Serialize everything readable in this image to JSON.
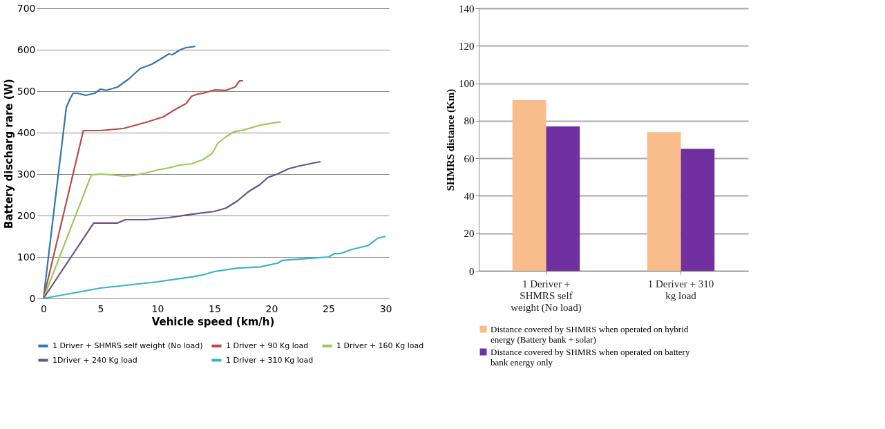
{
  "chart_data": [
    {
      "type": "line",
      "xlabel": "Vehicle speed (km/h)",
      "ylabel": "Battery discharg rare (W)",
      "xlim": [
        -0.6,
        30.3
      ],
      "xticks": [
        0,
        5,
        10,
        15,
        20,
        25,
        30
      ],
      "ylim": [
        0,
        700
      ],
      "yticks": [
        0,
        100,
        200,
        300,
        400,
        500,
        600,
        700
      ],
      "grid": "y",
      "legend": "bottom",
      "marker": "none",
      "line_style": "solid",
      "series": [
        {
          "name": "1 Driver + SHMRS self weight (No load)",
          "color": "#2f78b0",
          "x": [
            0,
            2.0,
            2.3,
            2.6,
            3.0,
            3.7,
            4.5,
            5.0,
            5.5,
            6.5,
            7.5,
            8.5,
            9.5,
            10.3,
            11.0,
            11.3,
            12.0,
            12.5,
            13.3
          ],
          "values": [
            0,
            460,
            480,
            495,
            495,
            490,
            495,
            505,
            502,
            510,
            530,
            555,
            565,
            578,
            590,
            588,
            600,
            605,
            608
          ]
        },
        {
          "name": "1 Driver + 90 Kg load",
          "color": "#b84a47",
          "x": [
            0,
            3.5,
            5.0,
            7.0,
            9.0,
            10.5,
            11.5,
            12.5,
            13.0,
            13.5,
            14.0,
            15.0,
            16.0,
            16.8,
            17.2,
            17.5
          ],
          "values": [
            0,
            405,
            405,
            410,
            425,
            438,
            455,
            470,
            488,
            493,
            495,
            503,
            502,
            510,
            525,
            525
          ]
        },
        {
          "name": "1 Driver + 160 Kg load",
          "color": "#9bcb59",
          "x": [
            0,
            4.2,
            5.0,
            6.0,
            7.0,
            8.0,
            9.0,
            10.0,
            11.0,
            12.0,
            13.0,
            14.0,
            14.8,
            15.3,
            16.0,
            16.7,
            17.5,
            19.0,
            20.8
          ],
          "values": [
            0,
            298,
            300,
            298,
            295,
            297,
            303,
            310,
            315,
            322,
            325,
            335,
            350,
            375,
            390,
            402,
            406,
            418,
            426
          ]
        },
        {
          "name": "1Driver + 240 Kg load",
          "color": "#67528a",
          "x": [
            0,
            4.4,
            6.5,
            7.2,
            9.0,
            11.0,
            13.0,
            15.0,
            16.0,
            17.0,
            18.0,
            19.0,
            19.7,
            20.5,
            21.5,
            22.5,
            24.3
          ],
          "values": [
            0,
            182,
            182,
            190,
            190,
            195,
            203,
            210,
            218,
            235,
            258,
            275,
            292,
            300,
            313,
            320,
            330
          ]
        },
        {
          "name": "1 Driver + 310 Kg load",
          "color": "#35b4cc",
          "x": [
            0,
            5.0,
            10.0,
            13.0,
            14.0,
            15.0,
            17.0,
            19.0,
            20.5,
            21.0,
            23.0,
            25.0,
            25.5,
            26.0,
            27.0,
            28.5,
            29.3,
            30.0
          ],
          "values": [
            0,
            25,
            40,
            52,
            57,
            65,
            73,
            76,
            85,
            92,
            96,
            100,
            108,
            108,
            118,
            128,
            145,
            150
          ]
        }
      ]
    },
    {
      "type": "bar",
      "ylabel": "SHMRS distance (Km)",
      "categories": [
        "1 Deriver + SHMRS self weight (No load)",
        "1 Deriver + 310 kg load"
      ],
      "ylim": [
        0,
        140
      ],
      "yticks": [
        0,
        20,
        40,
        60,
        80,
        100,
        120,
        140
      ],
      "grid": "y",
      "legend": "bottom",
      "series": [
        {
          "name": "Distance covered by SHMRS when operated on hybrid energy (Battery bank + solar)",
          "color": "#f9bd8c",
          "values": [
            91,
            74
          ]
        },
        {
          "name": "Distance covered by SHMRS when operated on battery bank energy only",
          "color": "#7030a0",
          "values": [
            77,
            65
          ]
        }
      ]
    }
  ]
}
